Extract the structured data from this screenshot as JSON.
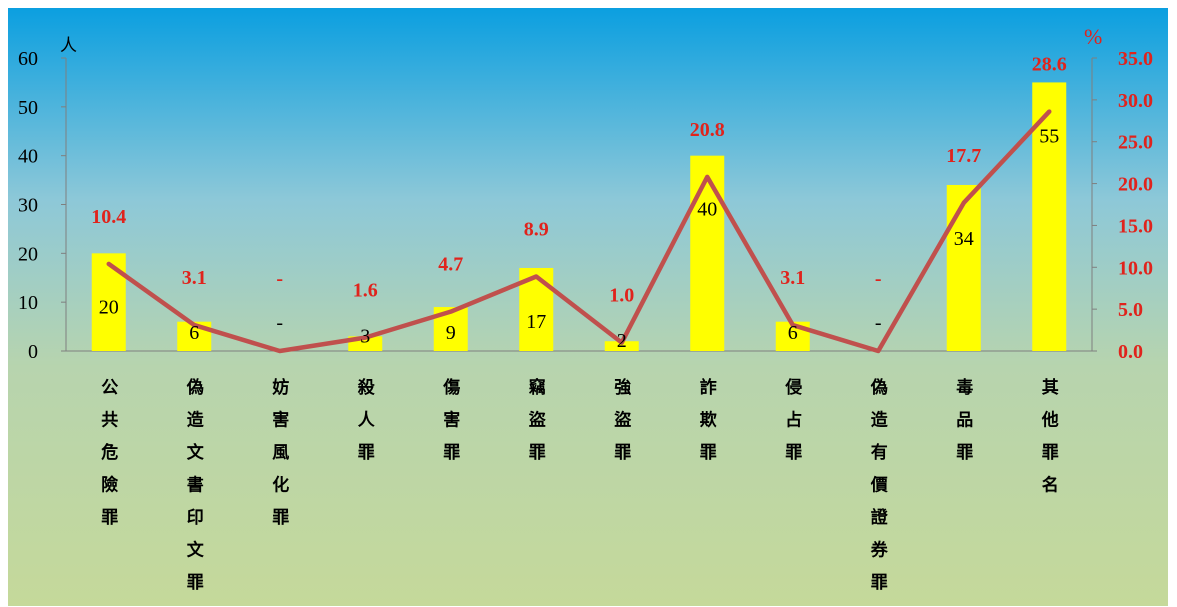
{
  "colors": {
    "bar": "#ffff00",
    "line": "#c0504d",
    "percent_text": "#e0231c",
    "bg_top": "#0b9fe0",
    "bg_bottom": "#c5d99a"
  },
  "chart_data": {
    "type": "bar",
    "categories": [
      "公共危險罪",
      "偽造文書印文罪",
      "妨害風化罪",
      "殺人罪",
      "傷害罪",
      "竊盜罪",
      "強盜罪",
      "詐欺罪",
      "侵占罪",
      "偽造有價證券罪",
      "毒品罪",
      "其他罪名"
    ],
    "series": [
      {
        "values": [
          20,
          6,
          0,
          3,
          9,
          17,
          2,
          40,
          6,
          0,
          34,
          55
        ],
        "labels": [
          "20",
          "6",
          "-",
          "3",
          "9",
          "17",
          "2",
          "40",
          "6",
          "-",
          "34",
          "55"
        ]
      },
      {
        "values": [
          10.4,
          3.1,
          0,
          1.6,
          4.7,
          8.9,
          1.0,
          20.8,
          3.1,
          0,
          17.7,
          28.6
        ],
        "labels": [
          "10.4",
          "3.1",
          "-",
          "1.6",
          "4.7",
          "8.9",
          "1.0",
          "20.8",
          "3.1",
          "-",
          "17.7",
          "28.6"
        ]
      }
    ],
    "y_left": {
      "unit": "人",
      "ylim": [
        0,
        60
      ],
      "ticks": [
        "0",
        "10",
        "20",
        "30",
        "40",
        "50",
        "60"
      ]
    },
    "y_right": {
      "unit": "%",
      "ylim": [
        0,
        35
      ],
      "ticks": [
        "0.0",
        "5.0",
        "10.0",
        "15.0",
        "20.0",
        "25.0",
        "30.0",
        "35.0"
      ]
    },
    "grid": false,
    "legend": "none"
  }
}
